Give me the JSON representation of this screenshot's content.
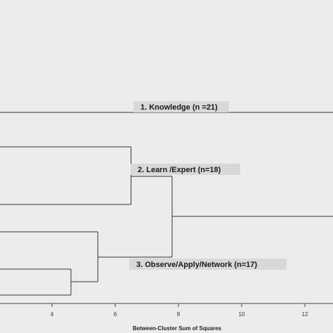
{
  "chart_data": {
    "type": "dendrogram",
    "orientation": "horizontal",
    "xlabel": "Between-Cluster Sum of Squares",
    "xticks": [
      4,
      6,
      8,
      10,
      12
    ],
    "xlim": [
      2.35,
      12.9
    ],
    "clusters": [
      {
        "label": "1. Knowledge (n =21)",
        "merge_height": 12.9
      },
      {
        "label": "2. Learn /Expert  (n=18)",
        "merge_height": 6.5
      },
      {
        "label": "3. Observe/Apply/Network (n=17)",
        "merge_height": 5.45
      }
    ],
    "merges": [
      {
        "height": 4.6,
        "joins": "within cluster 3 (lower branches)"
      },
      {
        "height": 5.45,
        "joins": "cluster 3"
      },
      {
        "height": 6.5,
        "joins": "cluster 2"
      },
      {
        "height": 7.8,
        "joins": "clusters 2 and 3"
      }
    ]
  }
}
